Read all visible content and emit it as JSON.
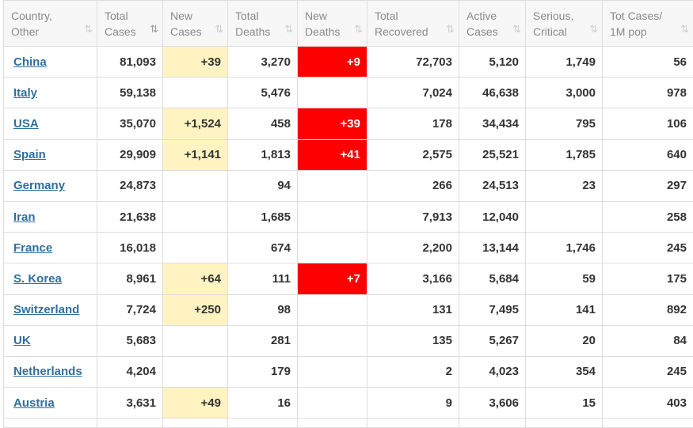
{
  "table": {
    "headers": [
      {
        "line1": "Country,",
        "line2": "Other"
      },
      {
        "line1": "Total",
        "line2": "Cases"
      },
      {
        "line1": "New",
        "line2": "Cases"
      },
      {
        "line1": "Total",
        "line2": "Deaths"
      },
      {
        "line1": "New",
        "line2": "Deaths"
      },
      {
        "line1": "Total",
        "line2": "Recovered"
      },
      {
        "line1": "Active",
        "line2": "Cases"
      },
      {
        "line1": "Serious,",
        "line2": "Critical"
      },
      {
        "line1": "Tot Cases/",
        "line2": "1M pop"
      }
    ],
    "sort_icon": "⇅",
    "sorted_column": 1,
    "rows": [
      {
        "country": "China",
        "total_cases": "81,093",
        "new_cases": "+39",
        "total_deaths": "3,270",
        "new_deaths": "+9",
        "total_recovered": "72,703",
        "active_cases": "5,120",
        "serious_critical": "1,749",
        "tot_cases_1m": "56"
      },
      {
        "country": "Italy",
        "total_cases": "59,138",
        "new_cases": "",
        "total_deaths": "5,476",
        "new_deaths": "",
        "total_recovered": "7,024",
        "active_cases": "46,638",
        "serious_critical": "3,000",
        "tot_cases_1m": "978"
      },
      {
        "country": "USA",
        "total_cases": "35,070",
        "new_cases": "+1,524",
        "total_deaths": "458",
        "new_deaths": "+39",
        "total_recovered": "178",
        "active_cases": "34,434",
        "serious_critical": "795",
        "tot_cases_1m": "106"
      },
      {
        "country": "Spain",
        "total_cases": "29,909",
        "new_cases": "+1,141",
        "total_deaths": "1,813",
        "new_deaths": "+41",
        "total_recovered": "2,575",
        "active_cases": "25,521",
        "serious_critical": "1,785",
        "tot_cases_1m": "640"
      },
      {
        "country": "Germany",
        "total_cases": "24,873",
        "new_cases": "",
        "total_deaths": "94",
        "new_deaths": "",
        "total_recovered": "266",
        "active_cases": "24,513",
        "serious_critical": "23",
        "tot_cases_1m": "297"
      },
      {
        "country": "Iran",
        "total_cases": "21,638",
        "new_cases": "",
        "total_deaths": "1,685",
        "new_deaths": "",
        "total_recovered": "7,913",
        "active_cases": "12,040",
        "serious_critical": "",
        "tot_cases_1m": "258"
      },
      {
        "country": "France",
        "total_cases": "16,018",
        "new_cases": "",
        "total_deaths": "674",
        "new_deaths": "",
        "total_recovered": "2,200",
        "active_cases": "13,144",
        "serious_critical": "1,746",
        "tot_cases_1m": "245"
      },
      {
        "country": "S. Korea",
        "total_cases": "8,961",
        "new_cases": "+64",
        "total_deaths": "111",
        "new_deaths": "+7",
        "total_recovered": "3,166",
        "active_cases": "5,684",
        "serious_critical": "59",
        "tot_cases_1m": "175"
      },
      {
        "country": "Switzerland",
        "total_cases": "7,724",
        "new_cases": "+250",
        "total_deaths": "98",
        "new_deaths": "",
        "total_recovered": "131",
        "active_cases": "7,495",
        "serious_critical": "141",
        "tot_cases_1m": "892"
      },
      {
        "country": "UK",
        "total_cases": "5,683",
        "new_cases": "",
        "total_deaths": "281",
        "new_deaths": "",
        "total_recovered": "135",
        "active_cases": "5,267",
        "serious_critical": "20",
        "tot_cases_1m": "84"
      },
      {
        "country": "Netherlands",
        "total_cases": "4,204",
        "new_cases": "",
        "total_deaths": "179",
        "new_deaths": "",
        "total_recovered": "2",
        "active_cases": "4,023",
        "serious_critical": "354",
        "tot_cases_1m": "245"
      },
      {
        "country": "Austria",
        "total_cases": "3,631",
        "new_cases": "+49",
        "total_deaths": "16",
        "new_deaths": "",
        "total_recovered": "9",
        "active_cases": "3,606",
        "serious_critical": "15",
        "tot_cases_1m": "403"
      }
    ]
  },
  "colors": {
    "new_cases_bg": "#fff4c1",
    "new_deaths_bg": "#ff0000",
    "link": "#2f6f9f",
    "header_text": "#8a8a8a"
  }
}
